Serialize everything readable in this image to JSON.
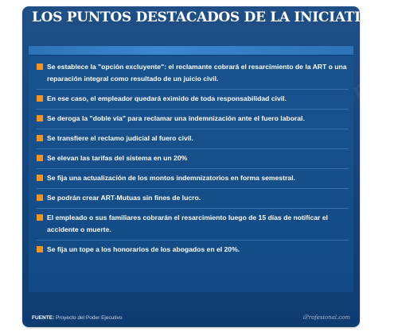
{
  "header": {
    "title": "LOS PUNTOS DESTACADOS DE LA INICIATIVA"
  },
  "highlights": {
    "items": [
      {
        "text": "Se establece la \"opción excluyente\": el reclamante cobrará el resarcimiento de la ART o una reparación integral como resultado de un juicio civil."
      },
      {
        "text": "En ese caso, el empleador quedará eximido de toda responsabilidad civil."
      },
      {
        "text": "Se deroga la \"doble vía\" para reclamar una indemnización ante el fuero laboral."
      },
      {
        "text": "Se transfiere el reclamo judicial al fuero civil."
      },
      {
        "text": "Se elevan las tarifas del sistema en un 20%"
      },
      {
        "text": "Se fija una actualización de los montos indemnizatorios en forma semestral."
      },
      {
        "text": "Se podrán crear ART-Mutuas sin fines de lucro."
      },
      {
        "text": "El empleado o sus familiares cobrarán el resarcimiento luego de 15 días de notificar el accidente o muerte."
      },
      {
        "text": "Se fija un tope a los honorarios de los abogados en el 20%."
      }
    ],
    "bullet_color": "#f7941d"
  },
  "footer": {
    "source_label": "FUENTE:",
    "source_text": "Proyecto del Poder Ejecutivo",
    "brand": "iProfesional.com"
  },
  "colors": {
    "card_background": "#14477e",
    "accent": "#f7941d",
    "text": "#ffffff"
  }
}
